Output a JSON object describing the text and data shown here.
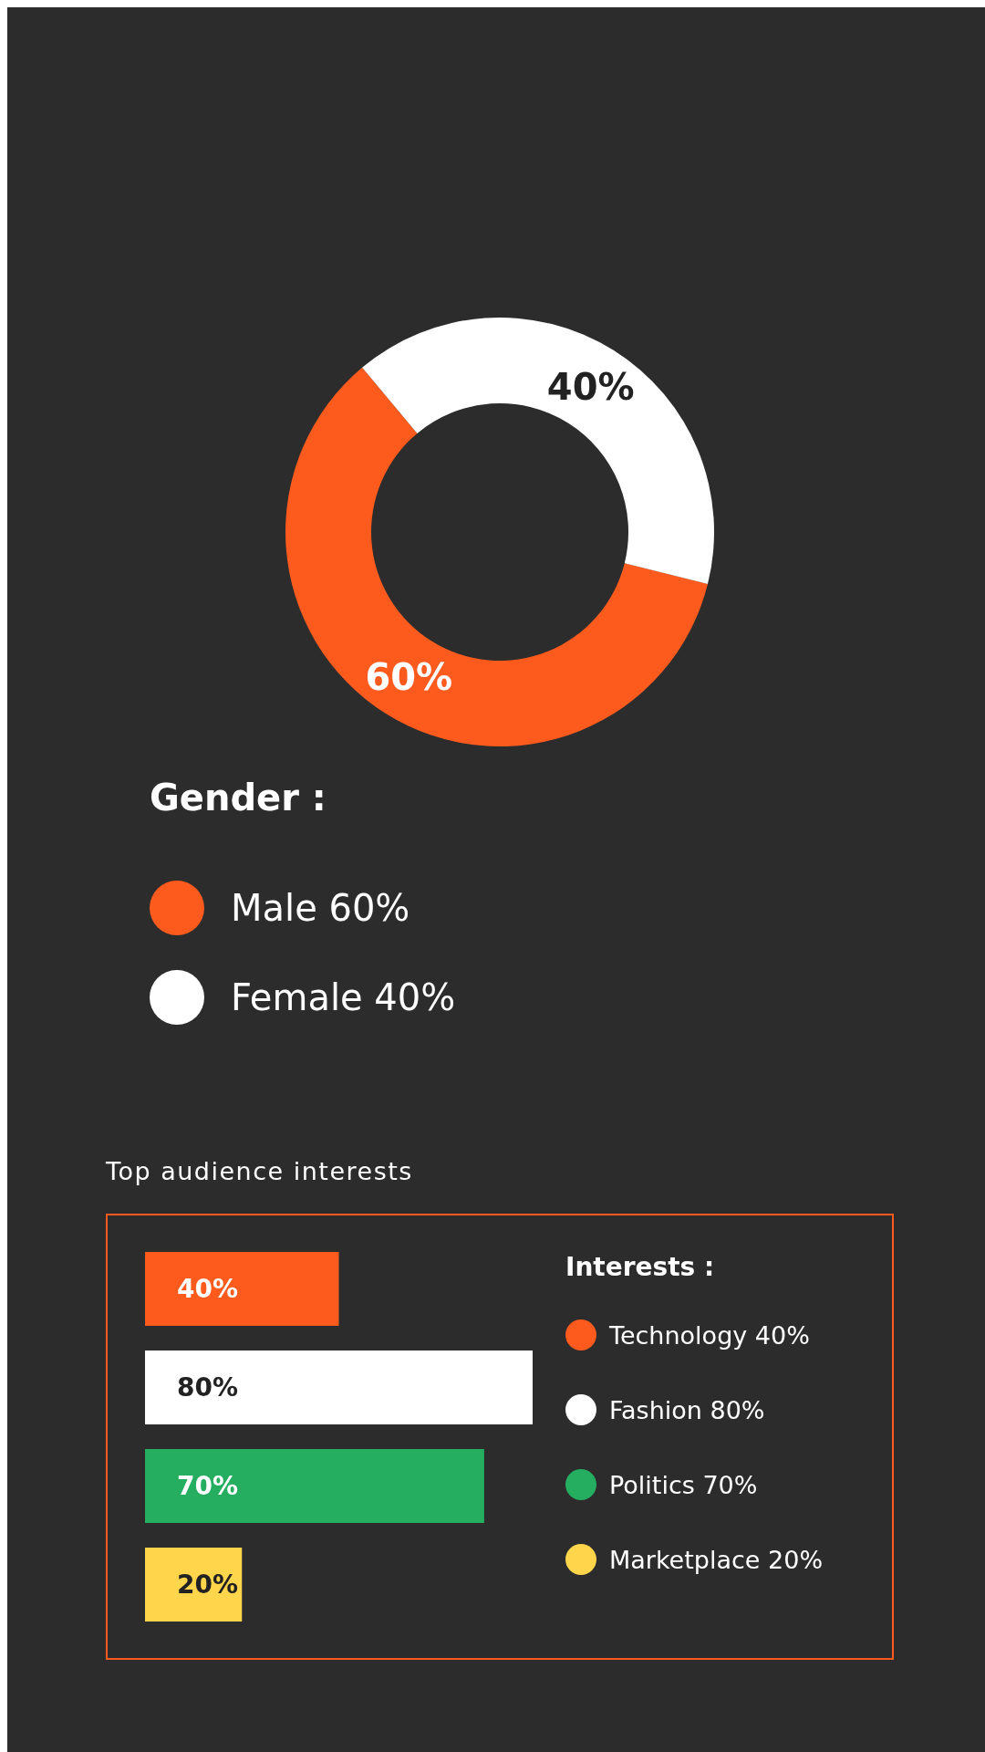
{
  "chart_data": [
    {
      "type": "donut",
      "legend_title": "Gender :",
      "categories": [
        "Male 60%",
        "Female 40%"
      ],
      "values": [
        60,
        40
      ],
      "colors": [
        "#fd5b1e",
        "#ffffff"
      ],
      "value_labels": [
        "60%",
        "40%"
      ],
      "legend": "bottom left"
    },
    {
      "type": "bar",
      "orientation": "horizontal",
      "stacked": true,
      "title": "Top audience interests",
      "legend_title": "Interests :",
      "categories": [
        null,
        null,
        null,
        null
      ],
      "legend": "right",
      "series": [
        {
          "name": "Technology 40%",
          "color": "#fd5b1e",
          "values": [
            40,
            null,
            null,
            null
          ],
          "value_labels": [
            "40%",
            null,
            null,
            null
          ]
        },
        {
          "name": "Fashion 80%",
          "color": "#ffffff",
          "values": [
            null,
            80,
            null,
            null
          ],
          "value_labels": [
            null,
            "80%",
            null,
            null
          ]
        },
        {
          "name": "Politics 70%",
          "color": "#25ae60",
          "values": [
            null,
            null,
            70,
            null
          ],
          "value_labels": [
            null,
            null,
            "70%",
            null
          ]
        },
        {
          "name": "Marketplace 20%",
          "color": "#ffd54c",
          "values": [
            null,
            null,
            null,
            20
          ],
          "value_labels": [
            null,
            null,
            null,
            "20%"
          ]
        }
      ]
    }
  ]
}
